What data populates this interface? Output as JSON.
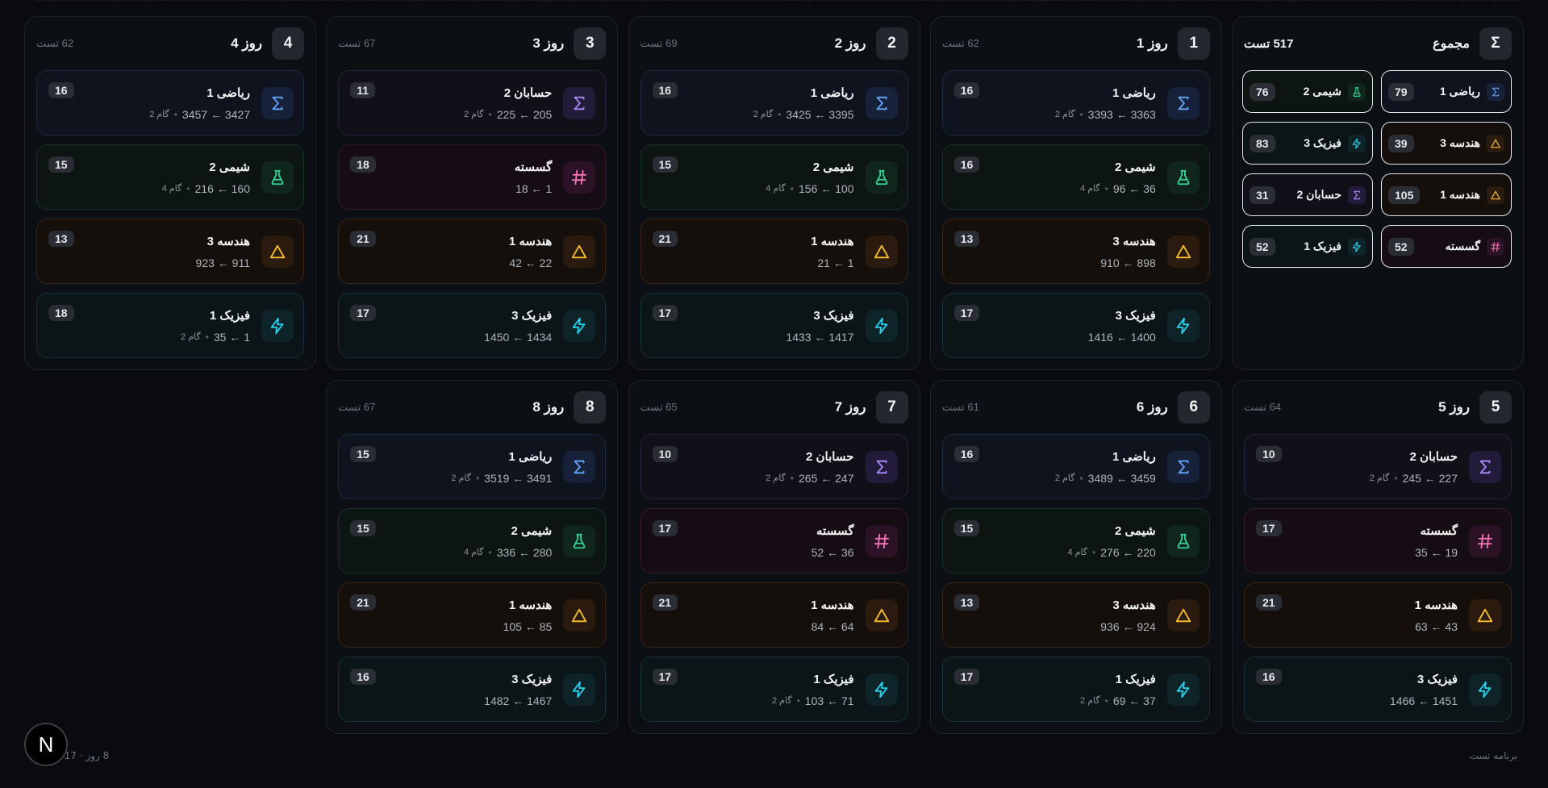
{
  "icons": {
    "math": "sigma-icon",
    "chem": "flask-icon",
    "geo": "triangle-icon",
    "phys": "bolt-icon",
    "hesab": "sigma-icon",
    "gosasteh": "hash-icon"
  },
  "colors": {
    "math": "#60a5fa",
    "chem": "#34d399",
    "geo": "#fbbf24",
    "phys": "#22d3ee",
    "hesab": "#a78bfa",
    "gosasteh": "#f472b6"
  },
  "summary": {
    "symbol": "Σ",
    "title": "مجموع",
    "total": "517 تست",
    "items": [
      {
        "type": "math",
        "name": "ریاضی 1",
        "count": "79"
      },
      {
        "type": "chem",
        "name": "شیمی 2",
        "count": "76"
      },
      {
        "type": "geo",
        "name": "هندسه 3",
        "count": "39"
      },
      {
        "type": "phys",
        "name": "فیزیک 3",
        "count": "83"
      },
      {
        "type": "geo",
        "name": "هندسه 1",
        "count": "105"
      },
      {
        "type": "hesab",
        "name": "حسابان 2",
        "count": "31"
      },
      {
        "type": "gosasteh",
        "name": "گسسته",
        "count": "52"
      },
      {
        "type": "phys",
        "name": "فیزیک 1",
        "count": "52"
      }
    ]
  },
  "days": [
    {
      "num": "1",
      "title": "روز 1",
      "count": "62 تست",
      "tasks": [
        {
          "type": "math",
          "name": "ریاضی 1",
          "range": "3363 ← 3393",
          "step": "گام 2",
          "count": "16"
        },
        {
          "type": "chem",
          "name": "شیمی 2",
          "range": "36 ← 96",
          "step": "گام 4",
          "count": "16"
        },
        {
          "type": "geo",
          "name": "هندسه 3",
          "range": "898 ← 910",
          "step": "",
          "count": "13"
        },
        {
          "type": "phys",
          "name": "فیزیک 3",
          "range": "1400 ← 1416",
          "step": "",
          "count": "17"
        }
      ]
    },
    {
      "num": "2",
      "title": "روز 2",
      "count": "69 تست",
      "tasks": [
        {
          "type": "math",
          "name": "ریاضی 1",
          "range": "3395 ← 3425",
          "step": "گام 2",
          "count": "16"
        },
        {
          "type": "chem",
          "name": "شیمی 2",
          "range": "100 ← 156",
          "step": "گام 4",
          "count": "15"
        },
        {
          "type": "geo",
          "name": "هندسه 1",
          "range": "1 ← 21",
          "step": "",
          "count": "21"
        },
        {
          "type": "phys",
          "name": "فیزیک 3",
          "range": "1417 ← 1433",
          "step": "",
          "count": "17"
        }
      ]
    },
    {
      "num": "3",
      "title": "روز 3",
      "count": "67 تست",
      "tasks": [
        {
          "type": "hesab",
          "name": "حسابان 2",
          "range": "205 ← 225",
          "step": "گام 2",
          "count": "11"
        },
        {
          "type": "gosasteh",
          "name": "گسسته",
          "range": "1 ← 18",
          "step": "",
          "count": "18"
        },
        {
          "type": "geo",
          "name": "هندسه 1",
          "range": "22 ← 42",
          "step": "",
          "count": "21"
        },
        {
          "type": "phys",
          "name": "فیزیک 3",
          "range": "1434 ← 1450",
          "step": "",
          "count": "17"
        }
      ]
    },
    {
      "num": "4",
      "title": "روز 4",
      "count": "62 تست",
      "tasks": [
        {
          "type": "math",
          "name": "ریاضی 1",
          "range": "3427 ← 3457",
          "step": "گام 2",
          "count": "16"
        },
        {
          "type": "chem",
          "name": "شیمی 2",
          "range": "160 ← 216",
          "step": "گام 4",
          "count": "15"
        },
        {
          "type": "geo",
          "name": "هندسه 3",
          "range": "911 ← 923",
          "step": "",
          "count": "13"
        },
        {
          "type": "phys",
          "name": "فیزیک 1",
          "range": "1 ← 35",
          "step": "گام 2",
          "count": "18"
        }
      ]
    },
    {
      "num": "5",
      "title": "روز 5",
      "count": "64 تست",
      "tasks": [
        {
          "type": "hesab",
          "name": "حسابان 2",
          "range": "227 ← 245",
          "step": "گام 2",
          "count": "10"
        },
        {
          "type": "gosasteh",
          "name": "گسسته",
          "range": "19 ← 35",
          "step": "",
          "count": "17"
        },
        {
          "type": "geo",
          "name": "هندسه 1",
          "range": "43 ← 63",
          "step": "",
          "count": "21"
        },
        {
          "type": "phys",
          "name": "فیزیک 3",
          "range": "1451 ← 1466",
          "step": "",
          "count": "16"
        }
      ]
    },
    {
      "num": "6",
      "title": "روز 6",
      "count": "61 تست",
      "tasks": [
        {
          "type": "math",
          "name": "ریاضی 1",
          "range": "3459 ← 3489",
          "step": "گام 2",
          "count": "16"
        },
        {
          "type": "chem",
          "name": "شیمی 2",
          "range": "220 ← 276",
          "step": "گام 4",
          "count": "15"
        },
        {
          "type": "geo",
          "name": "هندسه 3",
          "range": "924 ← 936",
          "step": "",
          "count": "13"
        },
        {
          "type": "phys",
          "name": "فیزیک 1",
          "range": "37 ← 69",
          "step": "گام 2",
          "count": "17"
        }
      ]
    },
    {
      "num": "7",
      "title": "روز 7",
      "count": "65 تست",
      "tasks": [
        {
          "type": "hesab",
          "name": "حسابان 2",
          "range": "247 ← 265",
          "step": "گام 2",
          "count": "10"
        },
        {
          "type": "gosasteh",
          "name": "گسسته",
          "range": "36 ← 52",
          "step": "",
          "count": "17"
        },
        {
          "type": "geo",
          "name": "هندسه 1",
          "range": "64 ← 84",
          "step": "",
          "count": "21"
        },
        {
          "type": "phys",
          "name": "فیزیک 1",
          "range": "71 ← 103",
          "step": "گام 2",
          "count": "17"
        }
      ]
    },
    {
      "num": "8",
      "title": "روز 8",
      "count": "67 تست",
      "tasks": [
        {
          "type": "math",
          "name": "ریاضی 1",
          "range": "3491 ← 3519",
          "step": "گام 2",
          "count": "15"
        },
        {
          "type": "chem",
          "name": "شیمی 2",
          "range": "280 ← 336",
          "step": "گام 4",
          "count": "15"
        },
        {
          "type": "geo",
          "name": "هندسه 1",
          "range": "85 ← 105",
          "step": "",
          "count": "21"
        },
        {
          "type": "phys",
          "name": "فیزیک 3",
          "range": "1467 ← 1482",
          "step": "",
          "count": "16"
        }
      ]
    }
  ],
  "footer": {
    "right": "برنامه تست",
    "left": "8 روز · 517"
  },
  "logo": "N"
}
